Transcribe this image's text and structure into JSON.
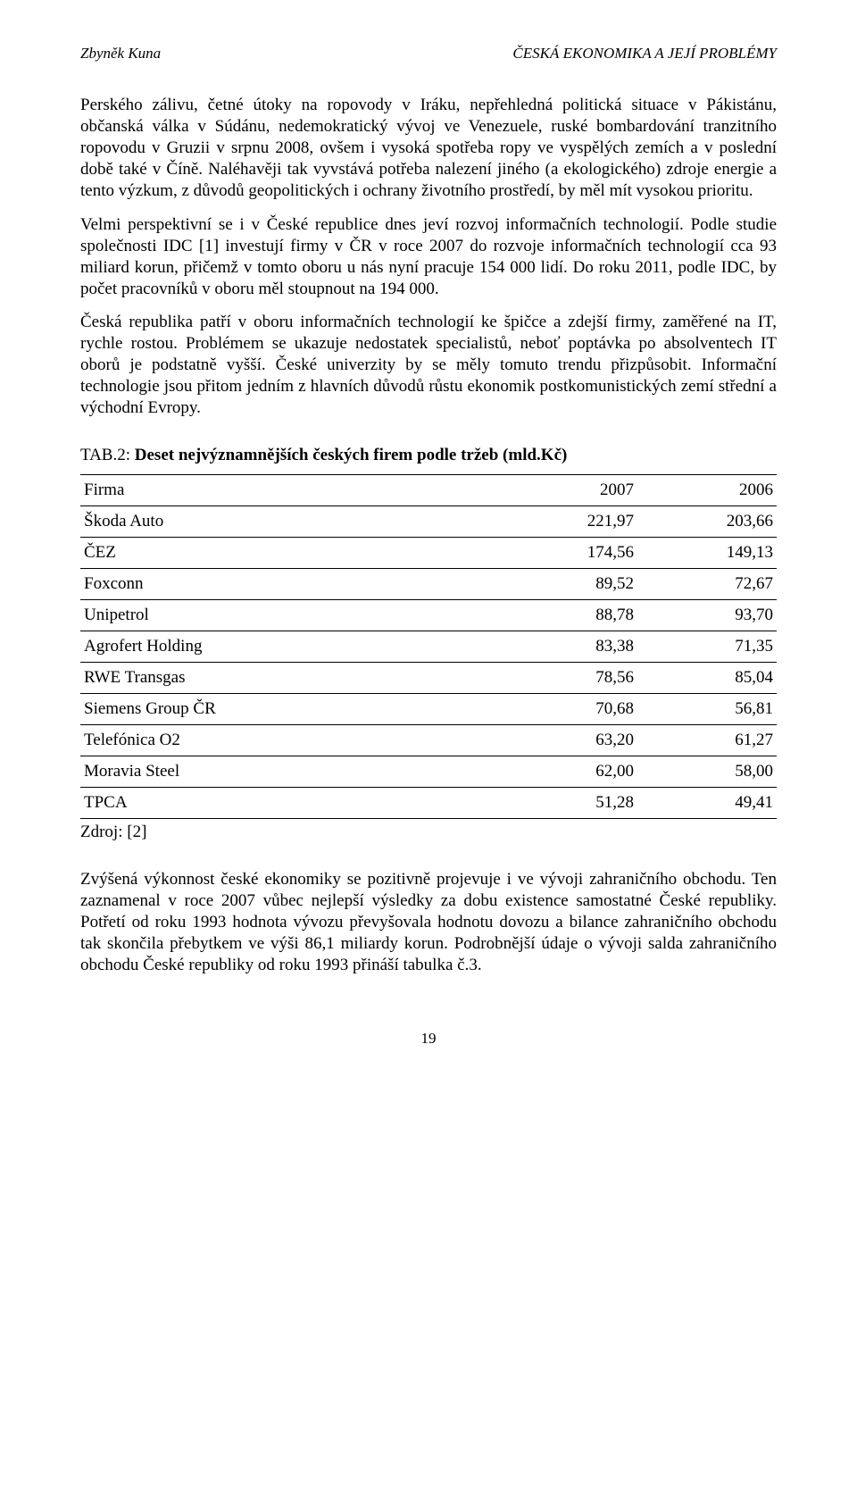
{
  "header": {
    "left": "Zbyněk Kuna",
    "right": "ČESKÁ EKONOMIKA A JEJÍ PROBLÉMY"
  },
  "paragraphs": {
    "p1": "Perského zálivu, četné útoky na ropovody v Iráku, nepřehledná politická situace v Pákistánu, občanská válka v Súdánu, nedemokratický vývoj ve Venezuele, ruské bombardování tranzitního ropovodu v Gruzii v srpnu 2008, ovšem i vysoká spotřeba ropy ve vyspělých zemích a v poslední době také v Číně. Naléhavěji tak vyvstává potřeba nalezení jiného (a ekologického) zdroje energie a tento výzkum, z důvodů geopolitických i ochrany životního prostředí, by měl mít vysokou prioritu.",
    "p2": "Velmi perspektivní se i v České republice dnes jeví rozvoj informačních technologií. Podle studie společnosti IDC [1] investují firmy v ČR v roce 2007 do rozvoje informačních technologií  cca 93 miliard korun, přičemž v tomto oboru u nás nyní pracuje 154 000 lidí. Do roku 2011, podle IDC, by počet pracovníků v oboru měl stoupnout na 194 000.",
    "p3": "Česká republika patří v oboru informačních technologií ke špičce a zdejší firmy, zaměřené na IT, rychle rostou. Problémem se ukazuje nedostatek specialistů, neboť poptávka po absolventech IT oborů je podstatně vyšší. České univerzity by se měly tomuto trendu přizpůsobit. Informační technologie jsou přitom jedním z hlavních důvodů růstu ekonomik postkomunistických zemí střední a východní Evropy.",
    "p4": "Zvýšená výkonnost české ekonomiky se pozitivně projevuje i ve vývoji zahraničního obchodu. Ten zaznamenal v roce 2007 vůbec nejlepší výsledky za dobu existence samostatné České republiky. Potřetí od roku 1993 hodnota vývozu převyšovala hodnotu dovozu a bilance zahraničního obchodu tak skončila přebytkem ve výši 86,1 miliardy korun. Podrobnější údaje o vývoji salda zahraničního obchodu České republiky od roku 1993 přináší tabulka č.3."
  },
  "table": {
    "caption_prefix": "TAB.2: ",
    "caption_bold": "Deset nejvýznamnějších českých firem podle tržeb (mld.Kč)",
    "columns": [
      "Firma",
      "2007",
      "2006"
    ],
    "rows": [
      [
        "Škoda Auto",
        "221,97",
        "203,66"
      ],
      [
        "ČEZ",
        "174,56",
        "149,13"
      ],
      [
        "Foxconn",
        "89,52",
        "72,67"
      ],
      [
        "Unipetrol",
        "88,78",
        "93,70"
      ],
      [
        "Agrofert Holding",
        "83,38",
        "71,35"
      ],
      [
        "RWE Transgas",
        "78,56",
        "85,04"
      ],
      [
        "Siemens Group ČR",
        "70,68",
        "56,81"
      ],
      [
        "Telefónica O2",
        "63,20",
        "61,27"
      ],
      [
        "Moravia Steel",
        "62,00",
        "58,00"
      ],
      [
        "TPCA",
        "51,28",
        "49,41"
      ]
    ],
    "source": "Zdroj: [2]",
    "col_widths": [
      "60%",
      "20%",
      "20%"
    ],
    "border_color": "#000000",
    "font_size_pt": 14
  },
  "page_number": "19",
  "style": {
    "body_font": "Times New Roman",
    "body_font_size_pt": 14,
    "header_font_size_pt": 13,
    "background_color": "#ffffff",
    "text_color": "#000000"
  }
}
